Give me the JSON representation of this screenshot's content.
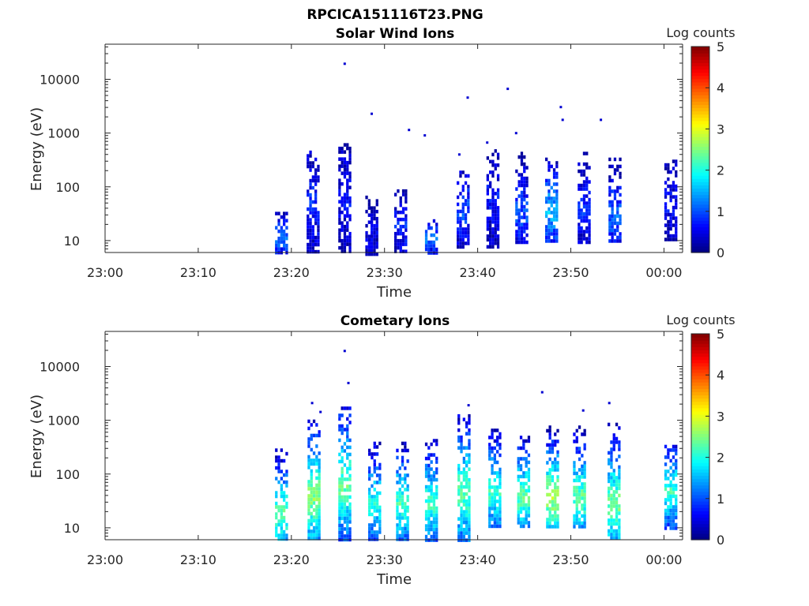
{
  "figure": {
    "title": "RPCICA151116T23.PNG"
  },
  "chart_data": [
    {
      "type": "heatmap",
      "title": "Solar Wind Ions",
      "xlabel": "Time",
      "ylabel": "Energy (eV)",
      "x_ticks": [
        "23:00",
        "23:10",
        "23:20",
        "23:30",
        "23:40",
        "23:50",
        "00:00"
      ],
      "y_ticks": [
        "10",
        "100",
        "1000",
        "10000"
      ],
      "y_scale": "log",
      "ylim": [
        6,
        45000
      ],
      "xlim_minutes_after_23_00": [
        0,
        62
      ],
      "colorbar": {
        "label": "Log counts",
        "ticks": [
          "0",
          "1",
          "2",
          "3",
          "4",
          "5"
        ],
        "range": [
          0,
          5
        ],
        "colormap": "jet"
      },
      "bursts": [
        {
          "t": 18.8,
          "lo": 6,
          "hi": 40,
          "core": 12,
          "level": 1.2
        },
        {
          "t": 22.2,
          "lo": 6,
          "hi": 550,
          "core": 60,
          "level": 0.8
        },
        {
          "t": 25.6,
          "lo": 6,
          "hi": 650,
          "core": 60,
          "level": 0.6
        },
        {
          "t": 28.5,
          "lo": 6,
          "hi": 80,
          "core": 15,
          "level": 0.5
        },
        {
          "t": 31.6,
          "lo": 6,
          "hi": 90,
          "core": 20,
          "level": 0.8
        },
        {
          "t": 34.9,
          "lo": 6,
          "hi": 25,
          "core": 12,
          "level": 1.3
        },
        {
          "t": 38.3,
          "lo": 8,
          "hi": 200,
          "core": 40,
          "level": 1.0
        },
        {
          "t": 41.5,
          "lo": 8,
          "hi": 500,
          "core": 60,
          "level": 0.7
        },
        {
          "t": 44.6,
          "lo": 10,
          "hi": 450,
          "core": 35,
          "level": 1.0
        },
        {
          "t": 47.8,
          "lo": 10,
          "hi": 350,
          "core": 40,
          "level": 1.6
        },
        {
          "t": 51.3,
          "lo": 10,
          "hi": 450,
          "core": 40,
          "level": 0.8
        },
        {
          "t": 54.6,
          "lo": 10,
          "hi": 350,
          "core": 30,
          "level": 1.1
        },
        {
          "t": 60.6,
          "lo": 10,
          "hi": 320,
          "core": 50,
          "level": 0.6
        }
      ],
      "scatter": [
        [
          25.6,
          20500
        ],
        [
          28.5,
          2400
        ],
        [
          32.5,
          1200
        ],
        [
          34.2,
          950
        ],
        [
          38.8,
          4800
        ],
        [
          43.1,
          7000
        ],
        [
          44.0,
          1050
        ],
        [
          48.8,
          3200
        ],
        [
          49.0,
          1850
        ],
        [
          53.1,
          1850
        ],
        [
          40.9,
          700
        ],
        [
          37.9,
          420
        ]
      ]
    },
    {
      "type": "heatmap",
      "title": "Cometary Ions",
      "xlabel": "Time",
      "ylabel": "Energy (eV)",
      "x_ticks": [
        "23:00",
        "23:10",
        "23:20",
        "23:30",
        "23:40",
        "23:50",
        "00:00"
      ],
      "y_ticks": [
        "10",
        "100",
        "1000",
        "10000"
      ],
      "y_scale": "log",
      "ylim": [
        6,
        45000
      ],
      "xlim_minutes_after_23_00": [
        0,
        62
      ],
      "colorbar": {
        "label": "Log counts",
        "ticks": [
          "0",
          "1",
          "2",
          "3",
          "4",
          "5"
        ],
        "range": [
          0,
          5
        ],
        "colormap": "jet"
      },
      "bursts": [
        {
          "t": 18.8,
          "lo": 6,
          "hi": 300,
          "core": 20,
          "level": 2.4
        },
        {
          "t": 22.3,
          "lo": 6,
          "hi": 1200,
          "core": 40,
          "level": 2.6
        },
        {
          "t": 25.6,
          "lo": 6,
          "hi": 1800,
          "core": 70,
          "level": 2.4
        },
        {
          "t": 28.8,
          "lo": 6,
          "hi": 400,
          "core": 30,
          "level": 2.0
        },
        {
          "t": 31.8,
          "lo": 6,
          "hi": 400,
          "core": 30,
          "level": 2.2
        },
        {
          "t": 34.9,
          "lo": 6,
          "hi": 450,
          "core": 30,
          "level": 2.2
        },
        {
          "t": 38.4,
          "lo": 6,
          "hi": 1300,
          "core": 50,
          "level": 2.4
        },
        {
          "t": 41.7,
          "lo": 10,
          "hi": 700,
          "core": 50,
          "level": 2.2
        },
        {
          "t": 44.8,
          "lo": 10,
          "hi": 600,
          "core": 40,
          "level": 2.4
        },
        {
          "t": 47.9,
          "lo": 10,
          "hi": 800,
          "core": 40,
          "level": 2.8
        },
        {
          "t": 50.8,
          "lo": 10,
          "hi": 800,
          "core": 40,
          "level": 2.4
        },
        {
          "t": 54.5,
          "lo": 6,
          "hi": 900,
          "core": 30,
          "level": 2.5
        },
        {
          "t": 60.6,
          "lo": 10,
          "hi": 350,
          "core": 50,
          "level": 2.2
        }
      ],
      "scatter": [
        [
          25.6,
          20500
        ],
        [
          26.0,
          5200
        ],
        [
          46.8,
          3500
        ],
        [
          54.0,
          2200
        ],
        [
          38.9,
          2000
        ],
        [
          22.1,
          2200
        ],
        [
          51.2,
          1600
        ],
        [
          23.0,
          1500
        ]
      ]
    }
  ]
}
